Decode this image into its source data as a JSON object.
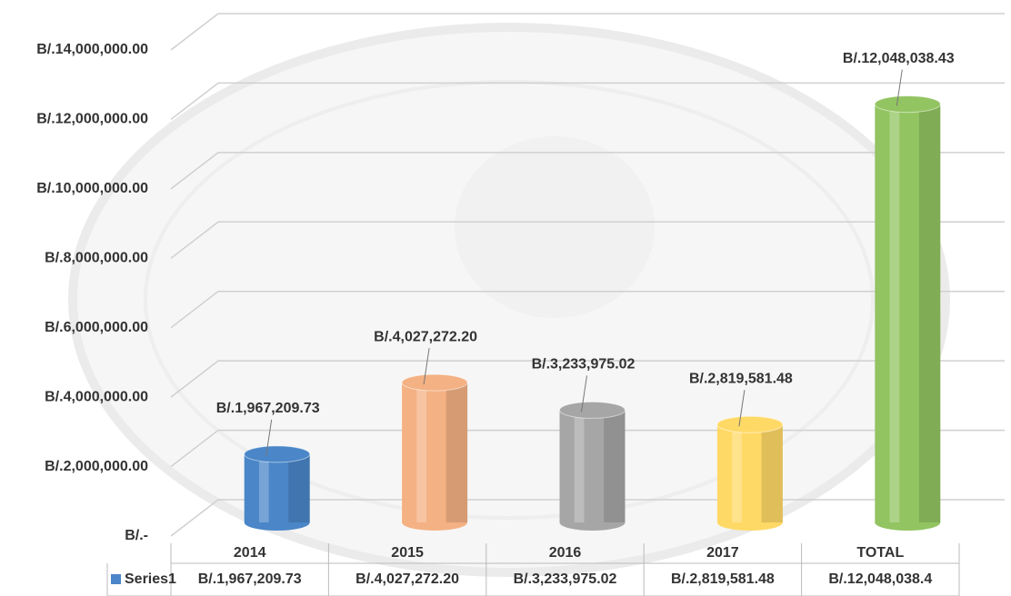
{
  "chart_data": {
    "type": "bar",
    "categories": [
      "2014",
      "2015",
      "2016",
      "2017",
      "TOTAL"
    ],
    "series": [
      {
        "name": "Series1",
        "colors": [
          "#4a86c8",
          "#f4b183",
          "#a6a6a6",
          "#ffd966",
          "#92c461"
        ],
        "legend_color": "#4a86c8",
        "values": [
          1967209.73,
          4027272.2,
          3233975.02,
          2819581.48,
          12048038.43
        ],
        "value_labels": [
          "B/.1,967,209.73",
          "B/.4,027,272.20",
          "B/.3,233,975.02",
          "B/.2,819,581.48",
          "B/.12,048,038.43"
        ],
        "table_labels": [
          "B/.1,967,209.73",
          "B/.4,027,272.20",
          "B/.3,233,975.02",
          "B/.2,819,581.48",
          "B/.12,048,038.4"
        ]
      }
    ],
    "ylim": [
      0,
      14000000
    ],
    "yticks": [
      {
        "value": 0,
        "label": "B/.-"
      },
      {
        "value": 2000000,
        "label": "B/.2,000,000.00"
      },
      {
        "value": 4000000,
        "label": "B/.4,000,000.00"
      },
      {
        "value": 6000000,
        "label": "B/.6,000,000.00"
      },
      {
        "value": 8000000,
        "label": "B/.8,000,000.00"
      },
      {
        "value": 10000000,
        "label": "B/.10,000,000.00"
      },
      {
        "value": 12000000,
        "label": "B/.12,000,000.00"
      },
      {
        "value": 14000000,
        "label": "B/.14,000,000.00"
      }
    ],
    "grid": true
  }
}
